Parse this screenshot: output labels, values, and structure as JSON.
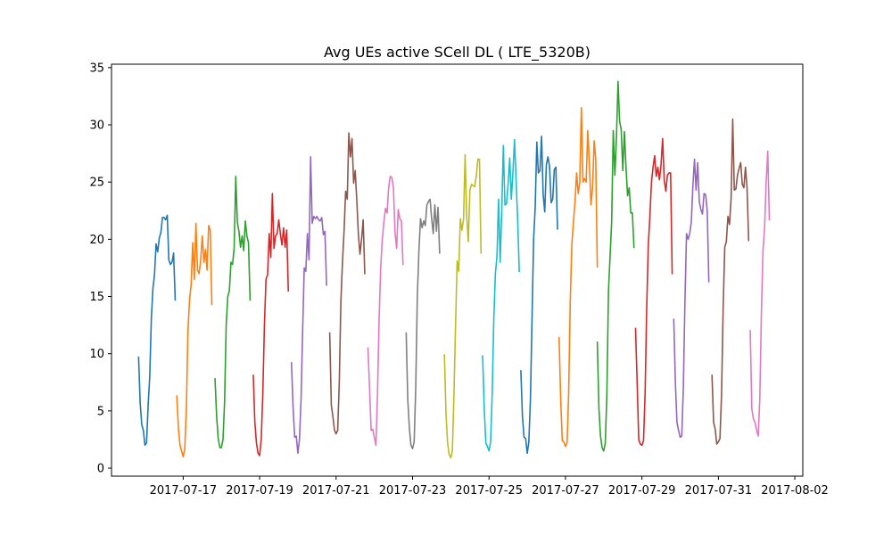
{
  "chart_data": {
    "type": "line",
    "title": "Avg UEs active SCell DL ( LTE_5320B)",
    "xlabel": "",
    "ylabel": "",
    "xlim": [
      "2017-07-15T03:00",
      "2017-08-02T05:00"
    ],
    "ylim": [
      -0.7,
      35.3
    ],
    "x_ticks": [
      "2017-07-17",
      "2017-07-19",
      "2017-07-21",
      "2017-07-23",
      "2017-07-25",
      "2017-07-27",
      "2017-07-29",
      "2017-07-31",
      "2017-08-02"
    ],
    "y_ticks": [
      0,
      5,
      10,
      15,
      20,
      25,
      30,
      35
    ],
    "grid": false,
    "legend": "none",
    "colors": [
      "#1f77b4",
      "#ff7f0e",
      "#2ca02c",
      "#d62728",
      "#9467bd",
      "#8c564b",
      "#e377c2",
      "#7f7f7f",
      "#bcbd22",
      "#17becf"
    ],
    "series": [
      {
        "start": "2017-07-15T20:00",
        "values": [
          9.7,
          5.7,
          3.8,
          3.3,
          2.0,
          2.2,
          5.5,
          8.0,
          13.0,
          15.7,
          16.9,
          19.6,
          18.9,
          20.1,
          20.6,
          21.9,
          21.9,
          21.7,
          22.1,
          18.2,
          17.8,
          18.0,
          18.8,
          14.7
        ]
      },
      {
        "start": "2017-07-16T20:00",
        "values": [
          6.3,
          3.5,
          2.0,
          1.5,
          1.0,
          1.7,
          5.2,
          12.0,
          14.7,
          16.0,
          19.7,
          16.5,
          21.4,
          17.3,
          17.0,
          18.2,
          20.3,
          18.0,
          19.1,
          17.3,
          21.2,
          20.8,
          14.3
        ]
      },
      {
        "start": "2017-07-17T20:00",
        "values": [
          7.8,
          4.5,
          2.6,
          1.8,
          1.8,
          2.5,
          5.8,
          12.5,
          15.0,
          15.5,
          18.0,
          17.8,
          19.2,
          25.5,
          21.5,
          20.7,
          19.3,
          20.3,
          19.0,
          21.6,
          20.3,
          19.7,
          14.7
        ]
      },
      {
        "start": "2017-07-18T20:00",
        "values": [
          8.1,
          4.0,
          2.2,
          1.3,
          1.1,
          2.5,
          6.5,
          12.5,
          16.5,
          16.9,
          20.5,
          18.4,
          24.0,
          19.2,
          20.3,
          20.5,
          21.7,
          20.5,
          19.5,
          21.0,
          19.3,
          20.8,
          15.5
        ]
      },
      {
        "start": "2017-07-19T20:00",
        "values": [
          9.2,
          5.3,
          2.7,
          2.8,
          1.3,
          2.5,
          6.0,
          12.0,
          17.5,
          17.2,
          20.5,
          18.2,
          27.2,
          21.4,
          22.0,
          21.8,
          22.0,
          21.7,
          21.6,
          21.9,
          20.4,
          20.7,
          16.0
        ]
      },
      {
        "start": "2017-07-20T20:00",
        "values": [
          11.8,
          5.5,
          4.5,
          3.3,
          3.0,
          3.3,
          7.5,
          14.5,
          18.0,
          20.7,
          24.2,
          23.5,
          29.3,
          27.2,
          28.8,
          24.9,
          26.0,
          23.4,
          20.4,
          18.7,
          20.0,
          21.7,
          17.0
        ]
      },
      {
        "start": "2017-07-21T20:00",
        "values": [
          10.5,
          7.0,
          3.3,
          3.4,
          2.7,
          2.0,
          6.5,
          13.0,
          17.5,
          20.0,
          21.5,
          22.7,
          22.3,
          24.5,
          25.5,
          25.4,
          24.5,
          20.6,
          19.2,
          22.6,
          21.8,
          21.6,
          17.8
        ]
      },
      {
        "start": "2017-07-22T20:00",
        "values": [
          11.8,
          6.0,
          3.5,
          2.0,
          1.7,
          2.3,
          7.0,
          15.0,
          19.0,
          21.8,
          21.0,
          21.6,
          21.2,
          23.0,
          23.3,
          23.5,
          21.8,
          20.5,
          23.0,
          20.7,
          22.8,
          18.8
        ]
      },
      {
        "start": "2017-07-23T20:00",
        "values": [
          9.9,
          4.8,
          2.2,
          1.2,
          0.9,
          1.5,
          6.5,
          12.5,
          18.1,
          17.2,
          21.8,
          20.8,
          21.7,
          27.4,
          22.0,
          19.8,
          24.3,
          24.8,
          24.7,
          24.6,
          25.5,
          27.0,
          27.0,
          18.8
        ]
      },
      {
        "start": "2017-07-24T20:00",
        "values": [
          9.8,
          5.2,
          2.2,
          1.9,
          1.5,
          2.3,
          6.5,
          13.0,
          17.0,
          18.5,
          23.5,
          18.0,
          22.5,
          28.2,
          23.0,
          23.1,
          24.8,
          27.1,
          23.5,
          25.8,
          28.7,
          25.2,
          21.6,
          17.2
        ]
      },
      {
        "start": "2017-07-25T20:00",
        "values": [
          8.5,
          4.5,
          2.7,
          2.6,
          1.3,
          2.3,
          6.0,
          13.0,
          20.0,
          22.8,
          28.5,
          25.8,
          26.0,
          29.0,
          23.9,
          22.4,
          26.5,
          27.2,
          26.4,
          23.2,
          23.5,
          26.1,
          26.3,
          20.9
        ]
      },
      {
        "start": "2017-07-26T20:00",
        "values": [
          11.4,
          6.0,
          2.4,
          2.3,
          1.9,
          2.2,
          6.5,
          14.5,
          19.5,
          21.5,
          23.3,
          25.8,
          24.0,
          25.0,
          31.5,
          25.0,
          25.3,
          25.0,
          29.5,
          26.8,
          23.0,
          24.5,
          28.6,
          27.0,
          17.6
        ]
      },
      {
        "start": "2017-07-27T20:00",
        "values": [
          11.0,
          5.2,
          2.8,
          1.8,
          1.5,
          2.2,
          6.5,
          15.5,
          18.5,
          21.5,
          29.5,
          25.6,
          28.8,
          33.8,
          30.3,
          29.6,
          26.0,
          29.4,
          26.3,
          23.8,
          24.5,
          22.3,
          22.3,
          19.3
        ]
      },
      {
        "start": "2017-07-28T20:00",
        "values": [
          12.2,
          7.5,
          2.5,
          2.1,
          2.0,
          2.4,
          6.5,
          14.0,
          19.5,
          22.0,
          25.0,
          26.3,
          27.3,
          25.5,
          26.3,
          25.2,
          26.5,
          28.8,
          25.2,
          24.2,
          25.6,
          25.8,
          25.8,
          17.0
        ]
      },
      {
        "start": "2017-07-29T20:00",
        "values": [
          13.0,
          7.5,
          4.0,
          3.3,
          2.7,
          2.8,
          7.0,
          14.5,
          20.5,
          20.0,
          20.5,
          21.5,
          24.7,
          27.0,
          24.3,
          26.7,
          23.3,
          22.6,
          22.2,
          24.0,
          23.9,
          22.5,
          16.3
        ]
      },
      {
        "start": "2017-07-30T20:00",
        "values": [
          8.1,
          4.0,
          3.4,
          2.1,
          2.3,
          2.6,
          6.5,
          14.0,
          19.3,
          19.8,
          22.0,
          21.3,
          23.6,
          30.5,
          24.3,
          24.4,
          25.6,
          26.2,
          26.7,
          24.8,
          24.5,
          26.3,
          24.5,
          19.9
        ]
      },
      {
        "start": "2017-07-31T20:00",
        "values": [
          12.0,
          5.2,
          4.3,
          4.0,
          3.3,
          2.8,
          6.0,
          13.5,
          19.0,
          21.0,
          25.0,
          27.7,
          21.7
        ]
      }
    ]
  }
}
